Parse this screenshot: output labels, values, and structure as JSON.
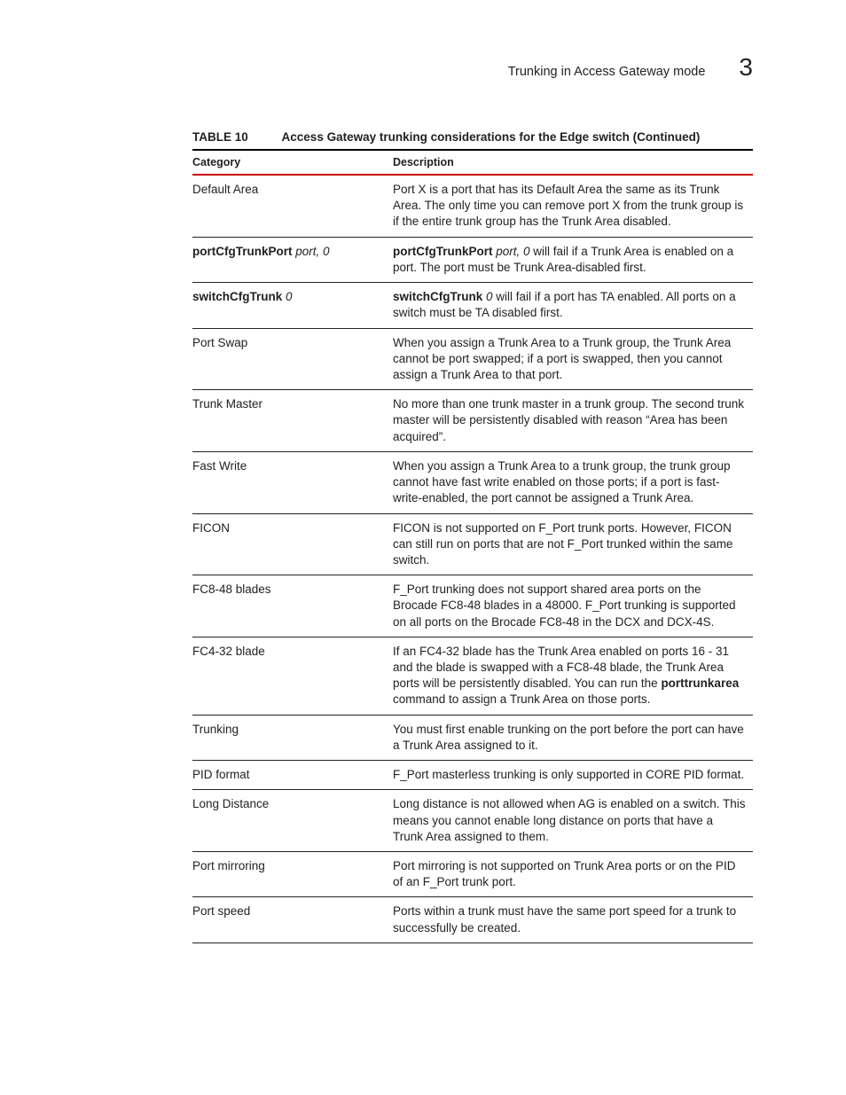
{
  "page": {
    "running_header": "Trunking in Access Gateway mode",
    "chapter_number": "3"
  },
  "table": {
    "caption_label": "TABLE 10",
    "caption_title": "Access Gateway trunking considerations for the Edge switch (Continued)",
    "columns": {
      "category": "Category",
      "description": "Description"
    },
    "header_rule_color": "#cc0000",
    "rows": [
      {
        "category_segments": [
          {
            "text": "Default Area",
            "bold": false,
            "ital": false
          }
        ],
        "description_segments": [
          {
            "text": "Port X is a port that has its Default Area the same as its Trunk Area. The only time you can remove port X from the trunk group is if the entire trunk group has the Trunk Area disabled.",
            "bold": false,
            "ital": false
          }
        ]
      },
      {
        "category_segments": [
          {
            "text": "portCfgTrunkPort ",
            "bold": true,
            "ital": false
          },
          {
            "text": "port, 0",
            "bold": false,
            "ital": true
          }
        ],
        "description_segments": [
          {
            "text": "portCfgTrunkPort ",
            "bold": true,
            "ital": false
          },
          {
            "text": "port, 0",
            "bold": false,
            "ital": true
          },
          {
            "text": " will fail if a Trunk Area is enabled on a port. The port must be Trunk Area-disabled first.",
            "bold": false,
            "ital": false
          }
        ]
      },
      {
        "category_segments": [
          {
            "text": "switchCfgTrunk ",
            "bold": true,
            "ital": false
          },
          {
            "text": "0",
            "bold": false,
            "ital": true
          }
        ],
        "description_segments": [
          {
            "text": "switchCfgTrunk ",
            "bold": true,
            "ital": false
          },
          {
            "text": "0",
            "bold": false,
            "ital": true
          },
          {
            "text": " will fail if a port has TA enabled. All ports on a switch must be TA disabled first.",
            "bold": false,
            "ital": false
          }
        ]
      },
      {
        "category_segments": [
          {
            "text": "Port Swap",
            "bold": false,
            "ital": false
          }
        ],
        "description_segments": [
          {
            "text": "When you assign a Trunk Area to a Trunk group, the Trunk Area cannot be port swapped; if a port is swapped, then you cannot assign a Trunk Area to that port.",
            "bold": false,
            "ital": false
          }
        ]
      },
      {
        "category_segments": [
          {
            "text": "Trunk Master",
            "bold": false,
            "ital": false
          }
        ],
        "description_segments": [
          {
            "text": "No more than one trunk master in a trunk group. The second trunk master will be persistently disabled with reason “Area has been acquired”.",
            "bold": false,
            "ital": false
          }
        ]
      },
      {
        "category_segments": [
          {
            "text": "Fast Write",
            "bold": false,
            "ital": false
          }
        ],
        "description_segments": [
          {
            "text": "When you assign a Trunk Area to a trunk group, the trunk group cannot have fast write enabled on those ports; if a port is fast-write-enabled, the port cannot be assigned a Trunk Area.",
            "bold": false,
            "ital": false
          }
        ]
      },
      {
        "category_segments": [
          {
            "text": "FICON",
            "bold": false,
            "ital": false
          }
        ],
        "description_segments": [
          {
            "text": "FICON is not supported on F_Port trunk ports. However, FICON can still run on ports that are not F_Port trunked within the same switch.",
            "bold": false,
            "ital": false
          }
        ]
      },
      {
        "category_segments": [
          {
            "text": "FC8-48 blades",
            "bold": false,
            "ital": false
          }
        ],
        "description_segments": [
          {
            "text": "F_Port trunking does not support shared area ports on the Brocade FC8-48 blades in a 48000. F_Port trunking is supported on all ports on the Brocade FC8-48 in the DCX and DCX-4S.",
            "bold": false,
            "ital": false
          }
        ]
      },
      {
        "category_segments": [
          {
            "text": "FC4-32 blade",
            "bold": false,
            "ital": false
          }
        ],
        "description_segments": [
          {
            "text": "If an FC4-32 blade has the Trunk Area enabled on ports 16 - 31 and the blade is swapped with a FC8-48 blade, the Trunk Area ports will be persistently disabled. You can run the ",
            "bold": false,
            "ital": false
          },
          {
            "text": "porttrunkarea",
            "bold": true,
            "ital": false
          },
          {
            "text": " command to assign a Trunk Area on those ports.",
            "bold": false,
            "ital": false
          }
        ]
      },
      {
        "category_segments": [
          {
            "text": "Trunking",
            "bold": false,
            "ital": false
          }
        ],
        "description_segments": [
          {
            "text": "You must first enable trunking on the port before the port can have a Trunk Area assigned to it.",
            "bold": false,
            "ital": false
          }
        ]
      },
      {
        "category_segments": [
          {
            "text": "PID format",
            "bold": false,
            "ital": false
          }
        ],
        "description_segments": [
          {
            "text": "F_Port masterless trunking is only supported in CORE PID format.",
            "bold": false,
            "ital": false
          }
        ]
      },
      {
        "category_segments": [
          {
            "text": "Long Distance",
            "bold": false,
            "ital": false
          }
        ],
        "description_segments": [
          {
            "text": "Long distance is not allowed when AG is enabled on a switch. This means you cannot enable long distance on ports that have a Trunk Area assigned to them.",
            "bold": false,
            "ital": false
          }
        ]
      },
      {
        "category_segments": [
          {
            "text": "Port mirroring",
            "bold": false,
            "ital": false
          }
        ],
        "description_segments": [
          {
            "text": "Port mirroring is not supported on Trunk Area ports or on the PID of an F_Port trunk port.",
            "bold": false,
            "ital": false
          }
        ]
      },
      {
        "category_segments": [
          {
            "text": "Port speed",
            "bold": false,
            "ital": false
          }
        ],
        "description_segments": [
          {
            "text": "Ports within a trunk must have the same port speed for a trunk to successfully be created.",
            "bold": false,
            "ital": false
          }
        ]
      }
    ]
  }
}
